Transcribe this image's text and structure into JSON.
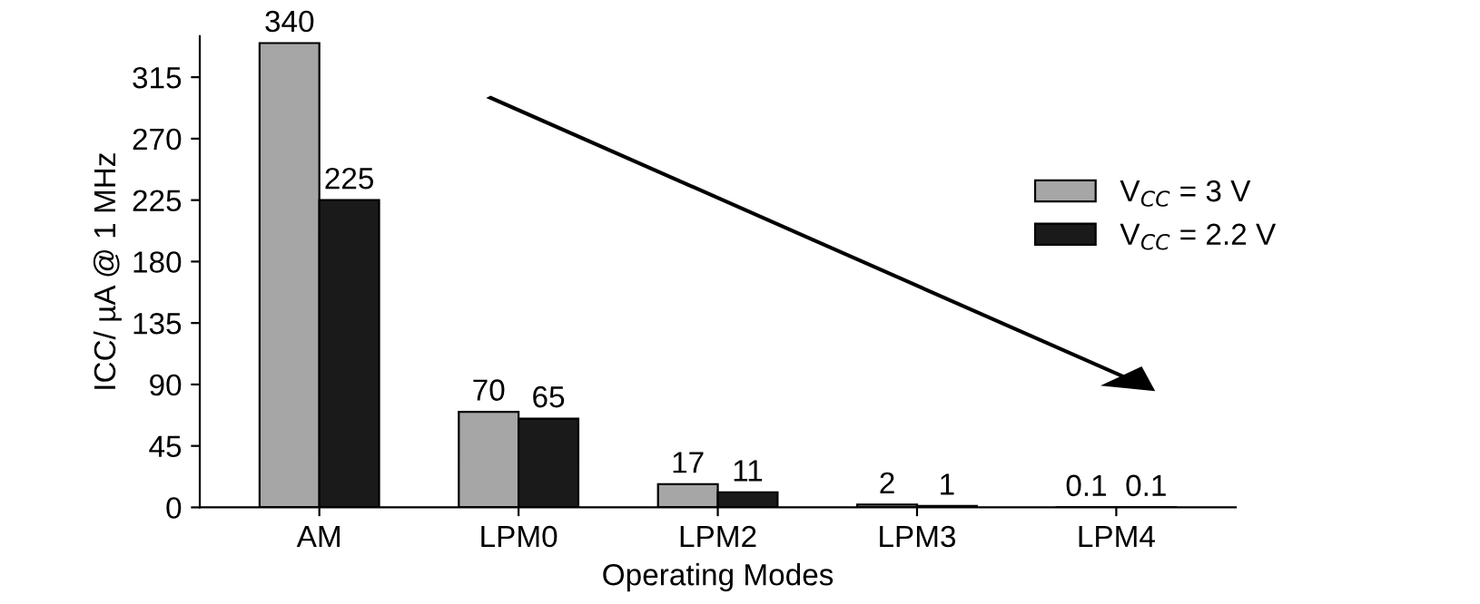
{
  "chart_data": {
    "type": "bar",
    "xlabel": "Operating Modes",
    "ylabel": "ICC/ µA @ 1 MHz",
    "categories": [
      "AM",
      "LPM0",
      "LPM2",
      "LPM3",
      "LPM4"
    ],
    "series": [
      {
        "name": "V$_{CC}$ = 3 V",
        "color": "#a6a6a6",
        "values": [
          340,
          70,
          17,
          2,
          0.1
        ]
      },
      {
        "name": "V$_{CC}$ = 2.2 V",
        "color": "#1a1a1a",
        "values": [
          225,
          65,
          11,
          1,
          0.1
        ]
      }
    ],
    "ylim": [
      0,
      345
    ],
    "yticks": [
      0,
      45,
      90,
      135,
      180,
      225,
      270,
      315
    ],
    "data_labels": true,
    "legend": "right",
    "grid": false
  }
}
